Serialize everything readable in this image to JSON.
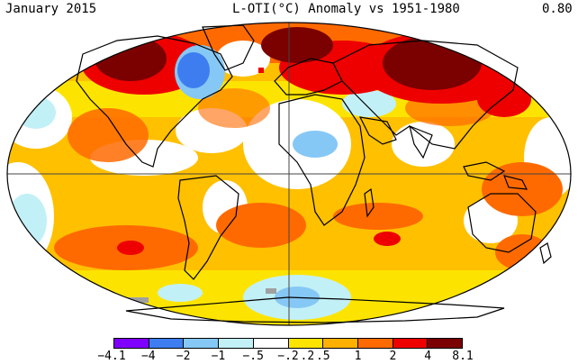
{
  "header": {
    "left": "January 2015",
    "center": "L-OTI(°C) Anomaly vs 1951-1980",
    "right": "0.80"
  },
  "legend": {
    "colors": [
      "#8000ff",
      "#3d7df0",
      "#86c8f5",
      "#c2f0f7",
      "#ffffff",
      "#fde400",
      "#ffb000",
      "#ff6a00",
      "#ee0000",
      "#7b0000"
    ],
    "ticks": [
      "-4.1",
      "-4",
      "-2",
      "-1",
      "-.5",
      "-.2",
      ".2",
      ".5",
      "1",
      "2",
      "4",
      "8.1"
    ]
  },
  "palette": {
    "ocean_base": "#ffc000",
    "land_outline": "#000000",
    "grid": "#444444"
  }
}
